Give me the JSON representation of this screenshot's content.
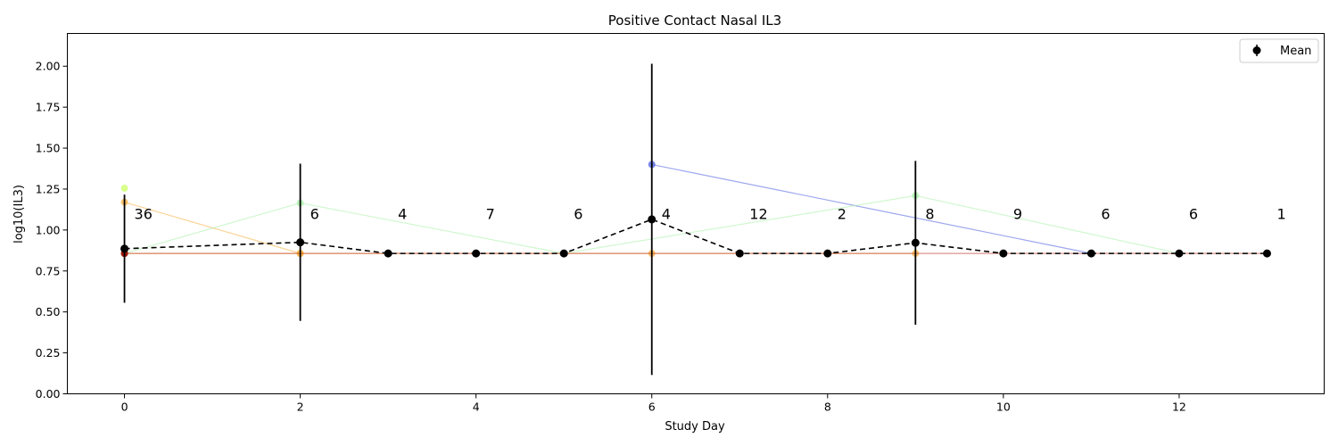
{
  "chart_data": {
    "type": "line",
    "title": "Positive Contact Nasal IL3",
    "xlabel": "Study Day",
    "ylabel": "log10(IL3)",
    "xlim": [
      -0.65,
      13.65
    ],
    "ylim": [
      0,
      2.2
    ],
    "xticks": [
      0,
      2,
      4,
      6,
      8,
      10,
      12
    ],
    "xtick_labels": [
      "0",
      "2",
      "4",
      "6",
      "8",
      "10",
      "12"
    ],
    "yticks": [
      0,
      0.25,
      0.5,
      0.75,
      1.0,
      1.25,
      1.5,
      1.75,
      2.0
    ],
    "ytick_labels": [
      "0.00",
      "0.25",
      "0.50",
      "0.75",
      "1.00",
      "1.25",
      "1.50",
      "1.75",
      "2.00"
    ],
    "grid": false,
    "legend": {
      "placement": "top-right",
      "entries": [
        "Mean"
      ]
    },
    "counts": {
      "y": 1.1,
      "x": [
        0,
        2,
        3,
        4,
        5,
        6,
        7,
        8,
        9,
        10,
        11,
        12,
        13
      ],
      "labels": [
        "36",
        "6",
        "4",
        "7",
        "6",
        "4",
        "12",
        "2",
        "8",
        "9",
        "6",
        "6",
        "1"
      ]
    },
    "mean_series": {
      "name": "Mean",
      "color": "#000000",
      "x": [
        0,
        2,
        3,
        4,
        5,
        6,
        7,
        8,
        9,
        10,
        11,
        12,
        13
      ],
      "y": [
        0.886,
        0.925,
        0.857,
        0.857,
        0.857,
        1.065,
        0.857,
        0.857,
        0.922,
        0.857,
        0.857,
        0.857,
        0.857
      ],
      "err": [
        0.33,
        0.48,
        0,
        0,
        0,
        0.95,
        0,
        0,
        0.5,
        0,
        0,
        0,
        0
      ]
    },
    "subject_series": [
      {
        "color": "#f5b041",
        "x": [
          0,
          2
        ],
        "y": [
          1.17,
          0.857
        ]
      },
      {
        "color": "#ccff66",
        "x": [
          0
        ],
        "y": [
          1.255
        ]
      },
      {
        "color": "#aaf0aa",
        "x": [
          0,
          2,
          5
        ],
        "y": [
          0.857,
          1.165,
          0.857
        ]
      },
      {
        "color": "#4d5fe0",
        "x": [
          6,
          11
        ],
        "y": [
          1.4,
          0.857
        ]
      },
      {
        "color": "#aaf0aa",
        "x": [
          5,
          9,
          12
        ],
        "y": [
          0.857,
          1.21,
          0.857
        ]
      },
      {
        "color": "#f5b041",
        "x": [
          0,
          2,
          6,
          9
        ],
        "y": [
          0.857,
          0.857,
          0.857,
          0.857
        ]
      },
      {
        "color": "#c0392b",
        "x": [
          0,
          13
        ],
        "y": [
          0.857,
          0.857
        ]
      },
      {
        "color": "#8b0000",
        "x": [
          0
        ],
        "y": [
          0.857
        ]
      }
    ]
  }
}
